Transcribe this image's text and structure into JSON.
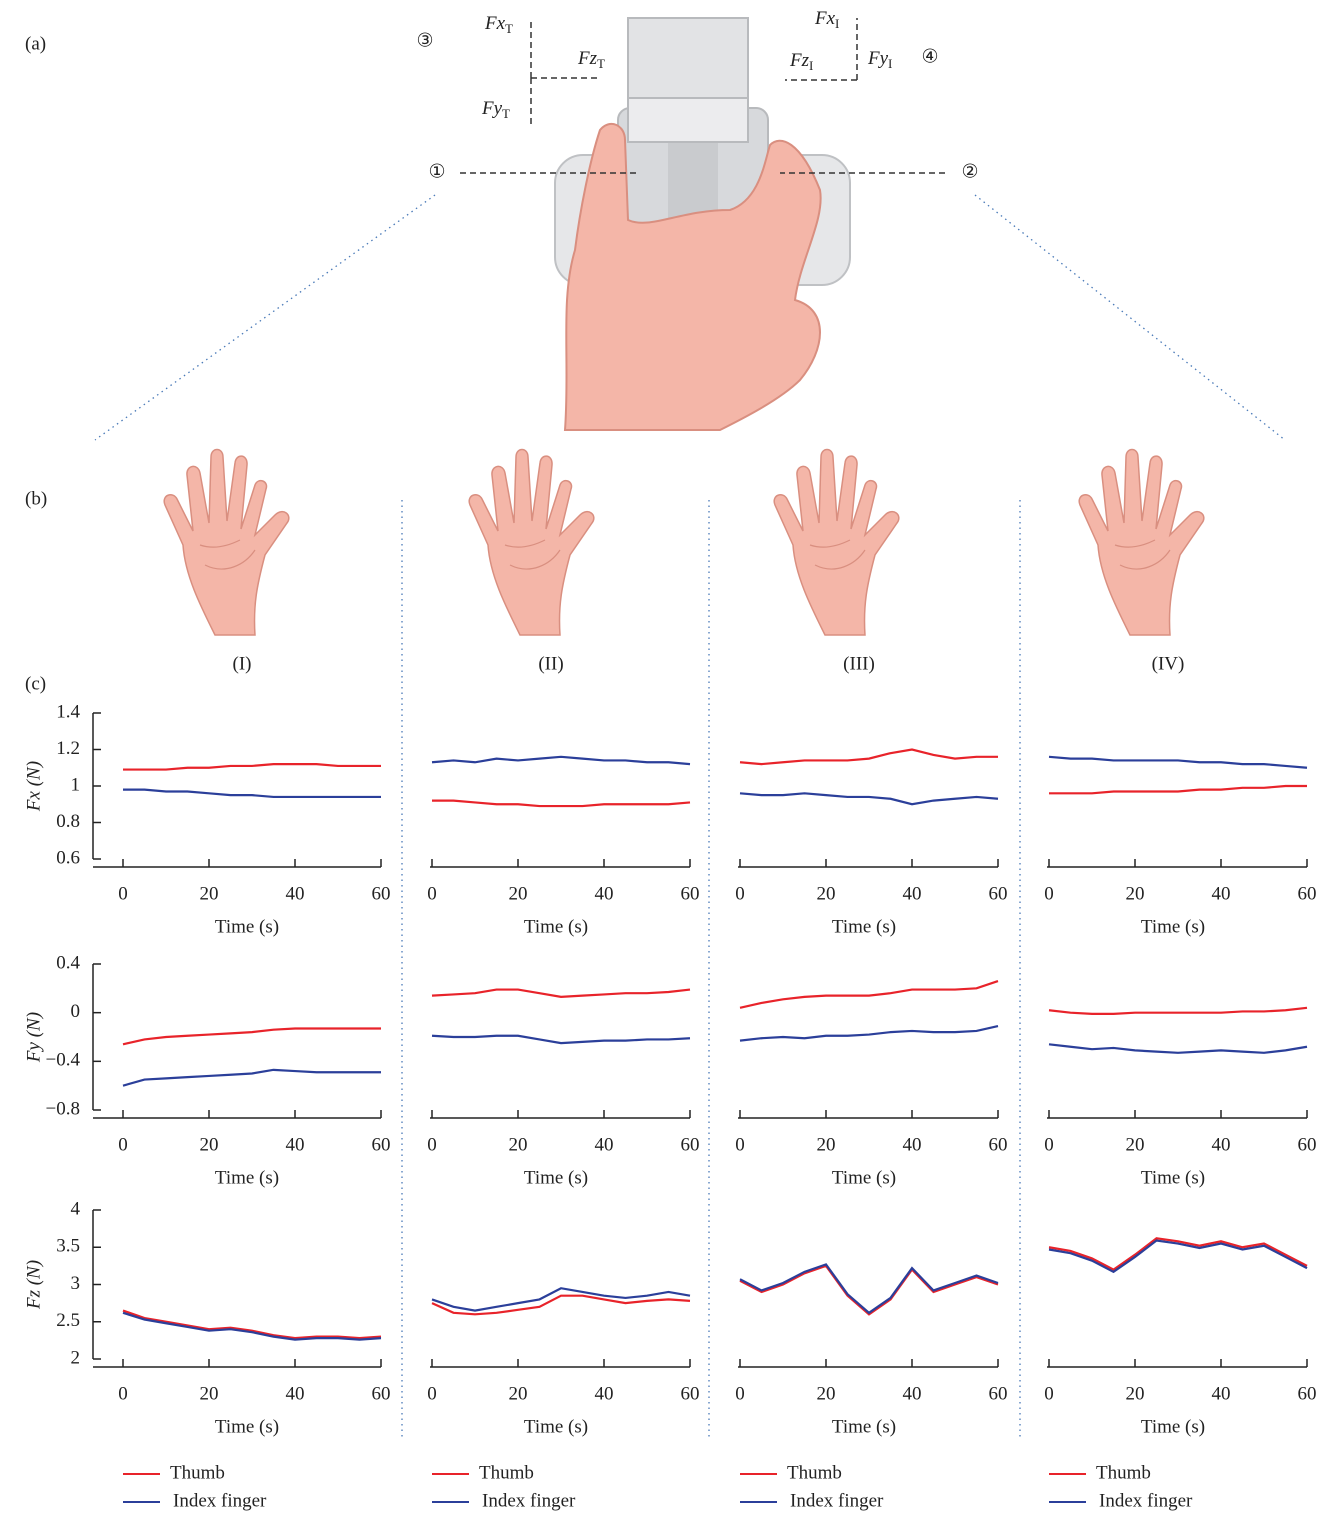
{
  "figure": {
    "panel_labels": [
      "(a)",
      "(b)",
      "(c)"
    ],
    "circled": [
      "①",
      "②",
      "③",
      "④"
    ],
    "force_labels": [
      {
        "text": "Fx",
        "sub": "T"
      },
      {
        "text": "Fz",
        "sub": "T"
      },
      {
        "text": "Fy",
        "sub": "T"
      },
      {
        "text": "Fx",
        "sub": "I"
      },
      {
        "text": "Fz",
        "sub": "I"
      },
      {
        "text": "Fy",
        "sub": "I"
      }
    ],
    "condition_labels": [
      "(I)",
      "(II)",
      "(III)",
      "(IV)"
    ]
  },
  "chart_data": [
    {
      "type": "line",
      "ylabel": "Fx (N)",
      "xlabel": "Time (s)",
      "x": [
        0,
        5,
        10,
        15,
        20,
        25,
        30,
        35,
        40,
        45,
        50,
        55,
        60
      ],
      "xlim": [
        0,
        60
      ],
      "xticks": [
        0,
        20,
        40,
        60
      ],
      "ylim": [
        0.6,
        1.4
      ],
      "yticks": [
        0.6,
        0.8,
        1,
        1.2,
        1.4
      ],
      "series": [
        {
          "name": "Thumb",
          "color": "#e8232a",
          "values": [
            1.09,
            1.09,
            1.09,
            1.1,
            1.1,
            1.11,
            1.11,
            1.12,
            1.12,
            1.12,
            1.11,
            1.11,
            1.11
          ]
        },
        {
          "name": "Index finger",
          "color": "#2b3f9a",
          "values": [
            0.98,
            0.98,
            0.97,
            0.97,
            0.96,
            0.95,
            0.95,
            0.94,
            0.94,
            0.94,
            0.94,
            0.94,
            0.94
          ]
        }
      ]
    },
    {
      "type": "line",
      "xlabel": "Time (s)",
      "x": [
        0,
        5,
        10,
        15,
        20,
        25,
        30,
        35,
        40,
        45,
        50,
        55,
        60
      ],
      "xlim": [
        0,
        60
      ],
      "xticks": [
        0,
        20,
        40,
        60
      ],
      "ylim": [
        0.6,
        1.4
      ],
      "series": [
        {
          "name": "Thumb",
          "color": "#e8232a",
          "values": [
            0.92,
            0.92,
            0.91,
            0.9,
            0.9,
            0.89,
            0.89,
            0.89,
            0.9,
            0.9,
            0.9,
            0.9,
            0.91
          ]
        },
        {
          "name": "Index finger",
          "color": "#2b3f9a",
          "values": [
            1.13,
            1.14,
            1.13,
            1.15,
            1.14,
            1.15,
            1.16,
            1.15,
            1.14,
            1.14,
            1.13,
            1.13,
            1.12
          ]
        }
      ]
    },
    {
      "type": "line",
      "xlabel": "Time (s)",
      "x": [
        0,
        5,
        10,
        15,
        20,
        25,
        30,
        35,
        40,
        45,
        50,
        55,
        60
      ],
      "xlim": [
        0,
        60
      ],
      "xticks": [
        0,
        20,
        40,
        60
      ],
      "ylim": [
        0.6,
        1.4
      ],
      "series": [
        {
          "name": "Thumb",
          "color": "#e8232a",
          "values": [
            1.13,
            1.12,
            1.13,
            1.14,
            1.14,
            1.14,
            1.15,
            1.18,
            1.2,
            1.17,
            1.15,
            1.16,
            1.16
          ]
        },
        {
          "name": "Index finger",
          "color": "#2b3f9a",
          "values": [
            0.96,
            0.95,
            0.95,
            0.96,
            0.95,
            0.94,
            0.94,
            0.93,
            0.9,
            0.92,
            0.93,
            0.94,
            0.93
          ]
        }
      ]
    },
    {
      "type": "line",
      "xlabel": "Time (s)",
      "x": [
        0,
        5,
        10,
        15,
        20,
        25,
        30,
        35,
        40,
        45,
        50,
        55,
        60
      ],
      "xlim": [
        0,
        60
      ],
      "xticks": [
        0,
        20,
        40,
        60
      ],
      "ylim": [
        0.6,
        1.4
      ],
      "series": [
        {
          "name": "Thumb",
          "color": "#e8232a",
          "values": [
            0.96,
            0.96,
            0.96,
            0.97,
            0.97,
            0.97,
            0.97,
            0.98,
            0.98,
            0.99,
            0.99,
            1.0,
            1.0
          ]
        },
        {
          "name": "Index finger",
          "color": "#2b3f9a",
          "values": [
            1.16,
            1.15,
            1.15,
            1.14,
            1.14,
            1.14,
            1.14,
            1.13,
            1.13,
            1.12,
            1.12,
            1.11,
            1.1
          ]
        }
      ]
    },
    {
      "type": "line",
      "ylabel": "Fy (N)",
      "xlabel": "Time (s)",
      "x": [
        0,
        5,
        10,
        15,
        20,
        25,
        30,
        35,
        40,
        45,
        50,
        55,
        60
      ],
      "xlim": [
        0,
        60
      ],
      "xticks": [
        0,
        20,
        40,
        60
      ],
      "ylim": [
        -0.8,
        0.4
      ],
      "yticks": [
        {
          "value": -0.8,
          "label": "−0.8"
        },
        {
          "value": -0.4,
          "label": "−0.4"
        },
        0,
        0.4
      ],
      "series": [
        {
          "name": "Thumb",
          "color": "#e8232a",
          "values": [
            -0.26,
            -0.22,
            -0.2,
            -0.19,
            -0.18,
            -0.17,
            -0.16,
            -0.14,
            -0.13,
            -0.13,
            -0.13,
            -0.13,
            -0.13
          ]
        },
        {
          "name": "Index finger",
          "color": "#2b3f9a",
          "values": [
            -0.6,
            -0.55,
            -0.54,
            -0.53,
            -0.52,
            -0.51,
            -0.5,
            -0.47,
            -0.48,
            -0.49,
            -0.49,
            -0.49,
            -0.49
          ]
        }
      ]
    },
    {
      "type": "line",
      "xlabel": "Time (s)",
      "x": [
        0,
        5,
        10,
        15,
        20,
        25,
        30,
        35,
        40,
        45,
        50,
        55,
        60
      ],
      "xlim": [
        0,
        60
      ],
      "xticks": [
        0,
        20,
        40,
        60
      ],
      "ylim": [
        -0.8,
        0.4
      ],
      "series": [
        {
          "name": "Thumb",
          "color": "#e8232a",
          "values": [
            0.14,
            0.15,
            0.16,
            0.19,
            0.19,
            0.16,
            0.13,
            0.14,
            0.15,
            0.16,
            0.16,
            0.17,
            0.19
          ]
        },
        {
          "name": "Index finger",
          "color": "#2b3f9a",
          "values": [
            -0.19,
            -0.2,
            -0.2,
            -0.19,
            -0.19,
            -0.22,
            -0.25,
            -0.24,
            -0.23,
            -0.23,
            -0.22,
            -0.22,
            -0.21
          ]
        }
      ]
    },
    {
      "type": "line",
      "xlabel": "Time (s)",
      "x": [
        0,
        5,
        10,
        15,
        20,
        25,
        30,
        35,
        40,
        45,
        50,
        55,
        60
      ],
      "xlim": [
        0,
        60
      ],
      "xticks": [
        0,
        20,
        40,
        60
      ],
      "ylim": [
        -0.8,
        0.4
      ],
      "series": [
        {
          "name": "Thumb",
          "color": "#e8232a",
          "values": [
            0.04,
            0.08,
            0.11,
            0.13,
            0.14,
            0.14,
            0.14,
            0.16,
            0.19,
            0.19,
            0.19,
            0.2,
            0.26
          ]
        },
        {
          "name": "Index finger",
          "color": "#2b3f9a",
          "values": [
            -0.23,
            -0.21,
            -0.2,
            -0.21,
            -0.19,
            -0.19,
            -0.18,
            -0.16,
            -0.15,
            -0.16,
            -0.16,
            -0.15,
            -0.11
          ]
        }
      ]
    },
    {
      "type": "line",
      "xlabel": "Time (s)",
      "x": [
        0,
        5,
        10,
        15,
        20,
        25,
        30,
        35,
        40,
        45,
        50,
        55,
        60
      ],
      "xlim": [
        0,
        60
      ],
      "xticks": [
        0,
        20,
        40,
        60
      ],
      "ylim": [
        -0.8,
        0.4
      ],
      "series": [
        {
          "name": "Thumb",
          "color": "#e8232a",
          "values": [
            0.02,
            0.0,
            -0.01,
            -0.01,
            0.0,
            0.0,
            0.0,
            0.0,
            0.0,
            0.01,
            0.01,
            0.02,
            0.04
          ]
        },
        {
          "name": "Index finger",
          "color": "#2b3f9a",
          "values": [
            -0.26,
            -0.28,
            -0.3,
            -0.29,
            -0.31,
            -0.32,
            -0.33,
            -0.32,
            -0.31,
            -0.32,
            -0.33,
            -0.31,
            -0.28
          ]
        }
      ]
    },
    {
      "type": "line",
      "ylabel": "Fz (N)",
      "xlabel": "Time (s)",
      "x": [
        0,
        5,
        10,
        15,
        20,
        25,
        30,
        35,
        40,
        45,
        50,
        55,
        60
      ],
      "xlim": [
        0,
        60
      ],
      "xticks": [
        0,
        20,
        40,
        60
      ],
      "ylim": [
        2,
        4
      ],
      "yticks": [
        2,
        2.5,
        3,
        3.5,
        4
      ],
      "series": [
        {
          "name": "Thumb",
          "color": "#e8232a",
          "values": [
            2.65,
            2.55,
            2.5,
            2.45,
            2.4,
            2.42,
            2.38,
            2.32,
            2.28,
            2.3,
            2.3,
            2.28,
            2.3
          ]
        },
        {
          "name": "Index finger",
          "color": "#2b3f9a",
          "values": [
            2.62,
            2.53,
            2.48,
            2.43,
            2.38,
            2.4,
            2.36,
            2.3,
            2.26,
            2.28,
            2.28,
            2.26,
            2.28
          ]
        }
      ]
    },
    {
      "type": "line",
      "xlabel": "Time (s)",
      "x": [
        0,
        5,
        10,
        15,
        20,
        25,
        30,
        35,
        40,
        45,
        50,
        55,
        60
      ],
      "xlim": [
        0,
        60
      ],
      "xticks": [
        0,
        20,
        40,
        60
      ],
      "ylim": [
        2,
        4
      ],
      "series": [
        {
          "name": "Thumb",
          "color": "#e8232a",
          "values": [
            2.75,
            2.62,
            2.6,
            2.62,
            2.66,
            2.7,
            2.85,
            2.85,
            2.8,
            2.75,
            2.78,
            2.8,
            2.78
          ]
        },
        {
          "name": "Index finger",
          "color": "#2b3f9a",
          "values": [
            2.8,
            2.7,
            2.65,
            2.7,
            2.75,
            2.8,
            2.95,
            2.9,
            2.85,
            2.82,
            2.85,
            2.9,
            2.85
          ]
        }
      ]
    },
    {
      "type": "line",
      "xlabel": "Time (s)",
      "x": [
        0,
        5,
        10,
        15,
        20,
        25,
        30,
        35,
        40,
        45,
        50,
        55,
        60
      ],
      "xlim": [
        0,
        60
      ],
      "xticks": [
        0,
        20,
        40,
        60
      ],
      "ylim": [
        2,
        4
      ],
      "series": [
        {
          "name": "Thumb",
          "color": "#e8232a",
          "values": [
            3.05,
            2.9,
            3.0,
            3.15,
            3.25,
            2.85,
            2.6,
            2.8,
            3.2,
            2.9,
            3.0,
            3.1,
            3.0
          ]
        },
        {
          "name": "Index finger",
          "color": "#2b3f9a",
          "values": [
            3.07,
            2.92,
            3.02,
            3.17,
            3.27,
            2.87,
            2.62,
            2.82,
            3.22,
            2.92,
            3.02,
            3.12,
            3.02
          ]
        }
      ]
    },
    {
      "type": "line",
      "xlabel": "Time (s)",
      "x": [
        0,
        5,
        10,
        15,
        20,
        25,
        30,
        35,
        40,
        45,
        50,
        55,
        60
      ],
      "xlim": [
        0,
        60
      ],
      "xticks": [
        0,
        20,
        40,
        60
      ],
      "ylim": [
        2,
        4
      ],
      "series": [
        {
          "name": "Thumb",
          "color": "#e8232a",
          "values": [
            3.5,
            3.45,
            3.35,
            3.2,
            3.4,
            3.62,
            3.58,
            3.52,
            3.58,
            3.5,
            3.55,
            3.4,
            3.25
          ]
        },
        {
          "name": "Index finger",
          "color": "#2b3f9a",
          "values": [
            3.47,
            3.42,
            3.32,
            3.17,
            3.37,
            3.59,
            3.55,
            3.49,
            3.55,
            3.47,
            3.52,
            3.37,
            3.22
          ]
        }
      ]
    }
  ]
}
